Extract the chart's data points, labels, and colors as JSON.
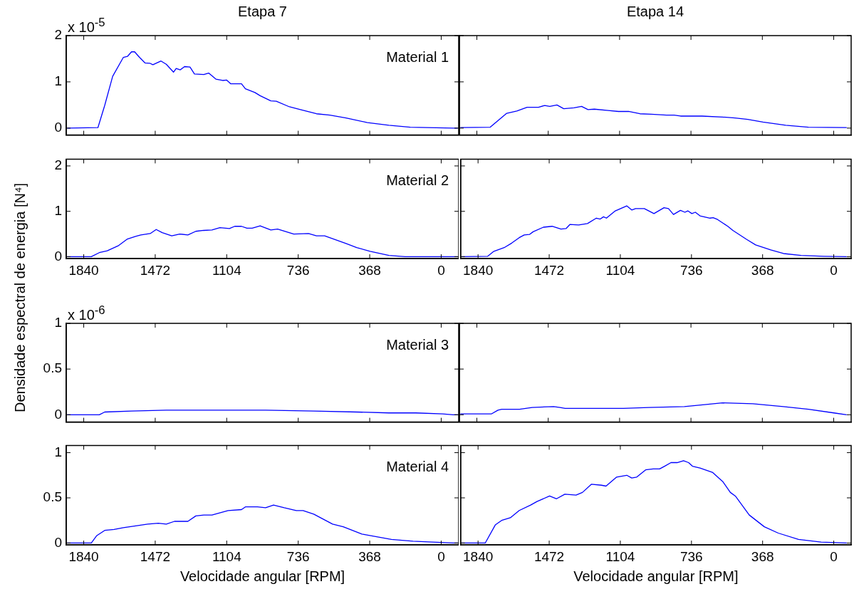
{
  "chart_data": [
    {
      "type": "line",
      "title": "Etapa 7",
      "ylabel": "Densidade espectral de energia [N⁴]",
      "annotations": [
        "x 10$^{-5}$",
        "Material 1"
      ],
      "color": "#0000ff",
      "xlim": [
        1930,
        -90
      ],
      "xticks": [
        1840,
        1472,
        1104,
        736,
        368,
        0
      ],
      "ylim": [
        -0.15,
        2
      ],
      "yticks": [
        0,
        1,
        2
      ],
      "tick_labels": "y",
      "x": [
        1925,
        1767,
        1732,
        1691,
        1636,
        1615,
        1594,
        1578,
        1553,
        1525,
        1498,
        1484,
        1442,
        1415,
        1378,
        1364,
        1343,
        1321,
        1293,
        1270,
        1222,
        1197,
        1160,
        1125,
        1105,
        1084,
        1028,
        1008,
        959,
        932,
        877,
        849,
        781,
        725,
        642,
        573,
        490,
        380,
        269,
        159,
        -62,
        -85
      ],
      "values": [
        0,
        0.01,
        0.49,
        1.12,
        1.53,
        1.55,
        1.65,
        1.65,
        1.53,
        1.41,
        1.4,
        1.37,
        1.45,
        1.38,
        1.21,
        1.29,
        1.26,
        1.33,
        1.32,
        1.17,
        1.16,
        1.19,
        1.06,
        1.03,
        1.04,
        0.96,
        0.96,
        0.85,
        0.77,
        0.7,
        0.59,
        0.58,
        0.46,
        0.4,
        0.31,
        0.28,
        0.22,
        0.12,
        0.06,
        0.02,
        0,
        0
      ]
    },
    {
      "type": "line",
      "title": "Etapa 14",
      "color": "#0000ff",
      "xlim": [
        1930,
        -90
      ],
      "xticks": [
        1840,
        1472,
        1104,
        736,
        368,
        0
      ],
      "ylim": [
        -0.15,
        2
      ],
      "yticks": [
        0,
        1,
        2
      ],
      "tick_labels": false,
      "x": [
        1925,
        1771,
        1686,
        1634,
        1581,
        1522,
        1490,
        1464,
        1427,
        1392,
        1339,
        1300,
        1267,
        1234,
        1163,
        1110,
        1058,
        999,
        940,
        862,
        823,
        790,
        679,
        574,
        509,
        443,
        365,
        247,
        130,
        -67
      ],
      "values": [
        0.01,
        0.02,
        0.32,
        0.37,
        0.45,
        0.45,
        0.49,
        0.47,
        0.5,
        0.42,
        0.44,
        0.47,
        0.4,
        0.41,
        0.38,
        0.36,
        0.36,
        0.31,
        0.3,
        0.28,
        0.28,
        0.26,
        0.26,
        0.24,
        0.22,
        0.19,
        0.13,
        0.06,
        0.02,
        0.01
      ]
    },
    {
      "type": "line",
      "annotations": [
        "Material 2"
      ],
      "color": "#0000ff",
      "xlim": [
        1930,
        -90
      ],
      "xticks": [
        1840,
        1472,
        1104,
        736,
        368,
        0
      ],
      "ylim": [
        -0.04,
        2.15
      ],
      "yticks": [
        0,
        1,
        2
      ],
      "x": [
        1925,
        1801,
        1760,
        1719,
        1663,
        1615,
        1573,
        1546,
        1498,
        1467,
        1436,
        1387,
        1346,
        1304,
        1263,
        1222,
        1180,
        1139,
        1090,
        1063,
        1028,
        1000,
        973,
        932,
        877,
        842,
        759,
        683,
        642,
        600,
        490,
        435,
        366,
        269,
        186,
        -85
      ],
      "values": [
        0,
        0,
        0.09,
        0.13,
        0.24,
        0.39,
        0.45,
        0.48,
        0.51,
        0.6,
        0.53,
        0.46,
        0.5,
        0.48,
        0.56,
        0.58,
        0.59,
        0.64,
        0.62,
        0.67,
        0.67,
        0.63,
        0.63,
        0.68,
        0.59,
        0.61,
        0.5,
        0.51,
        0.46,
        0.46,
        0.29,
        0.2,
        0.12,
        0.03,
        0,
        0
      ]
    },
    {
      "type": "line",
      "color": "#0000ff",
      "xlim": [
        1930,
        -90
      ],
      "xticks": [
        1840,
        1472,
        1104,
        736,
        368,
        0
      ],
      "ylim": [
        -0.04,
        2.15
      ],
      "yticks": [
        0,
        1,
        2
      ],
      "tick_labels": "x",
      "x": [
        1925,
        1790,
        1758,
        1705,
        1666,
        1627,
        1601,
        1574,
        1555,
        1502,
        1457,
        1411,
        1385,
        1365,
        1320,
        1274,
        1228,
        1208,
        1191,
        1176,
        1130,
        1071,
        1045,
        1025,
        980,
        930,
        878,
        855,
        829,
        793,
        770,
        755,
        734,
        716,
        692,
        640,
        624,
        601,
        548,
        522,
        450,
        404,
        326,
        260,
        169,
        51,
        -67
      ],
      "values": [
        0,
        0.01,
        0.12,
        0.2,
        0.3,
        0.42,
        0.48,
        0.49,
        0.55,
        0.65,
        0.67,
        0.61,
        0.62,
        0.71,
        0.7,
        0.73,
        0.85,
        0.83,
        0.88,
        0.85,
        1.01,
        1.12,
        1.03,
        1.06,
        1.06,
        0.95,
        1.08,
        1.06,
        0.93,
        1.02,
        0.98,
        1.01,
        0.95,
        0.98,
        0.9,
        0.85,
        0.86,
        0.82,
        0.67,
        0.58,
        0.38,
        0.26,
        0.15,
        0.07,
        0.03,
        0.01,
        0
      ]
    },
    {
      "type": "line",
      "annotations": [
        "x 10$^{-6}$",
        "Material 3"
      ],
      "color": "#0000ff",
      "xlim": [
        1930,
        -90
      ],
      "xticks": [
        1840,
        1472,
        1104,
        736,
        368,
        0
      ],
      "ylim": [
        -0.08,
        1
      ],
      "yticks": [
        0,
        0.5,
        1
      ],
      "tick_labels": "y",
      "x": [
        1925,
        1760,
        1732,
        1594,
        1415,
        1360,
        1194,
        904,
        656,
        435,
        269,
        131,
        -7,
        -62,
        -85
      ],
      "values": [
        0,
        0,
        0.03,
        0.04,
        0.05,
        0.05,
        0.05,
        0.05,
        0.04,
        0.03,
        0.02,
        0.02,
        0.01,
        0,
        0
      ]
    },
    {
      "type": "line",
      "color": "#0000ff",
      "xlim": [
        1930,
        -90
      ],
      "xticks": [
        1840,
        1472,
        1104,
        736,
        368,
        0
      ],
      "ylim": [
        -0.08,
        1
      ],
      "yticks": [
        0,
        0.5,
        1
      ],
      "tick_labels": false,
      "x": [
        1925,
        1764,
        1731,
        1712,
        1620,
        1555,
        1444,
        1411,
        1385,
        1084,
        953,
        770,
        666,
        574,
        417,
        260,
        130,
        -1,
        -67
      ],
      "values": [
        0.01,
        0.01,
        0.05,
        0.06,
        0.06,
        0.08,
        0.09,
        0.08,
        0.07,
        0.07,
        0.08,
        0.09,
        0.11,
        0.13,
        0.12,
        0.09,
        0.06,
        0.02,
        0
      ]
    },
    {
      "type": "line",
      "xlabel": "Velocidade angular [RPM]",
      "annotations": [
        "Material 4"
      ],
      "color": "#0000ff",
      "xlim": [
        1930,
        -90
      ],
      "xticks": [
        1840,
        1472,
        1104,
        736,
        368,
        0
      ],
      "ylim": [
        -0.02,
        1.08
      ],
      "yticks": [
        0,
        0.5,
        1
      ],
      "x": [
        1925,
        1801,
        1774,
        1732,
        1684,
        1636,
        1573,
        1511,
        1456,
        1415,
        1373,
        1304,
        1263,
        1222,
        1180,
        1097,
        1028,
        1008,
        946,
        904,
        863,
        808,
        746,
        711,
        656,
        559,
        504,
        408,
        256,
        145,
        -62,
        -85
      ],
      "values": [
        0,
        0,
        0.08,
        0.14,
        0.15,
        0.17,
        0.19,
        0.21,
        0.22,
        0.21,
        0.24,
        0.24,
        0.3,
        0.31,
        0.31,
        0.36,
        0.37,
        0.4,
        0.4,
        0.39,
        0.42,
        0.39,
        0.36,
        0.36,
        0.32,
        0.21,
        0.18,
        0.1,
        0.04,
        0.02,
        0,
        0
      ]
    },
    {
      "type": "line",
      "xlabel": "Velocidade angular [RPM]",
      "color": "#0000ff",
      "xlim": [
        1930,
        -90
      ],
      "xticks": [
        1840,
        1472,
        1104,
        736,
        368,
        0
      ],
      "ylim": [
        -0.02,
        1.08
      ],
      "yticks": [
        0,
        0.5,
        1
      ],
      "tick_labels": "x",
      "x": [
        1925,
        1803,
        1751,
        1718,
        1673,
        1627,
        1568,
        1535,
        1470,
        1434,
        1391,
        1333,
        1300,
        1254,
        1202,
        1178,
        1123,
        1071,
        1045,
        1019,
        973,
        934,
        901,
        875,
        842,
        810,
        777,
        751,
        731,
        692,
        626,
        574,
        535,
        509,
        437,
        359,
        287,
        182,
        65,
        -67
      ],
      "values": [
        0,
        0,
        0.2,
        0.25,
        0.28,
        0.36,
        0.42,
        0.46,
        0.52,
        0.49,
        0.54,
        0.53,
        0.56,
        0.65,
        0.64,
        0.63,
        0.73,
        0.75,
        0.72,
        0.73,
        0.81,
        0.82,
        0.82,
        0.85,
        0.89,
        0.89,
        0.91,
        0.89,
        0.85,
        0.83,
        0.78,
        0.68,
        0.56,
        0.52,
        0.31,
        0.18,
        0.11,
        0.04,
        0.01,
        0
      ]
    }
  ]
}
